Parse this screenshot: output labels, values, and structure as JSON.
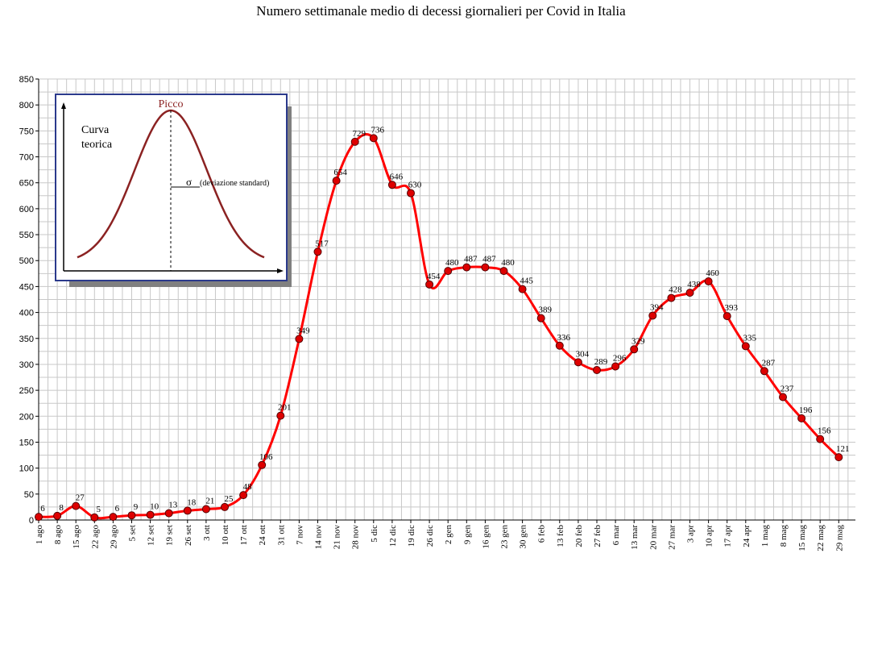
{
  "chart_data": {
    "type": "line",
    "title": "Numero settimanale medio di decessi giornalieri per Covid in Italia",
    "xlabel": "",
    "ylabel": "",
    "ylim": [
      0,
      850
    ],
    "y_ticks": [
      0,
      50,
      100,
      150,
      200,
      250,
      300,
      350,
      400,
      450,
      500,
      550,
      600,
      650,
      700,
      750,
      800,
      850
    ],
    "grid": true,
    "categories": [
      "1 ago",
      "8 ago",
      "15 ago",
      "22 ago",
      "29 ago",
      "5 set",
      "12 set",
      "19 set",
      "26 set",
      "3 ott",
      "10 ott",
      "17 ott",
      "24 ott",
      "31 ott",
      "7 nov",
      "14 nov",
      "21 nov",
      "28 nov",
      "5 dic",
      "12 dic",
      "19 dic",
      "26 dic",
      "2 gen",
      "9 gen",
      "16 gen",
      "23 gen",
      "30 gen",
      "6 feb",
      "13 feb",
      "20 feb",
      "27 feb",
      "6 mar",
      "13 mar",
      "20 mar",
      "27 mar",
      "3 apr",
      "10 apr",
      "17 apr",
      "24 apr",
      "1 mag",
      "8 mag",
      "15 mag",
      "22 mag",
      "29 mag"
    ],
    "series": [
      {
        "color": "#ff0000",
        "marker_color": "#dd0000",
        "values": [
          6,
          8,
          27,
          5,
          6,
          9,
          10,
          13,
          18,
          21,
          25,
          48,
          106,
          201,
          349,
          517,
          654,
          729,
          736,
          646,
          630,
          454,
          480,
          487,
          487,
          480,
          445,
          389,
          336,
          304,
          289,
          296,
          329,
          394,
          428,
          438,
          460,
          393,
          335,
          287,
          237,
          196,
          156,
          121
        ]
      }
    ],
    "inset": {
      "peak_label": "Picco",
      "curve_label_line1": "Curva",
      "curve_label_line2": "teorica",
      "sigma_symbol": "σ",
      "sigma_label": "(deviazione standard)"
    }
  }
}
